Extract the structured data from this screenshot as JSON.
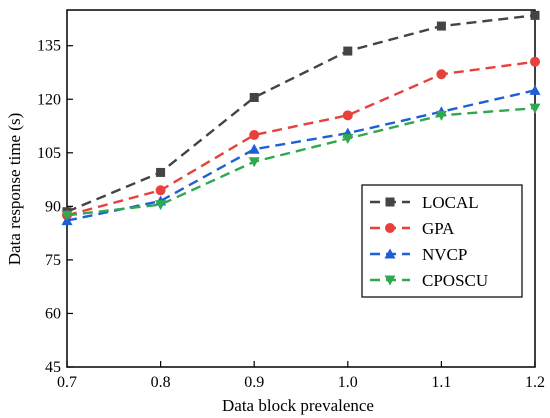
{
  "chart_data": {
    "type": "line",
    "xlabel": "Data block prevalence",
    "ylabel": "Data response time (s)",
    "x": [
      0.7,
      0.8,
      0.9,
      1.0,
      1.1,
      1.2
    ],
    "x_tick_labels": [
      "0.7",
      "0.8",
      "0.9",
      "1.0",
      "1.1",
      "1.2"
    ],
    "xlim": [
      0.7,
      1.2
    ],
    "y_ticks": [
      45,
      60,
      75,
      90,
      105,
      120,
      135
    ],
    "ylim": [
      45,
      145
    ],
    "grid": false,
    "legend_position": "right",
    "series": [
      {
        "name": "LOCAL",
        "color": "#444444",
        "marker": "square",
        "values": [
          88.5,
          99.5,
          120.5,
          133.5,
          140.5,
          143.5
        ]
      },
      {
        "name": "GPA",
        "color": "#e8413c",
        "marker": "circle",
        "values": [
          87.5,
          94.5,
          110.0,
          115.5,
          127.0,
          130.5
        ]
      },
      {
        "name": "NVCP",
        "color": "#1f5fd6",
        "marker": "triangle-up",
        "values": [
          86.0,
          91.5,
          106.0,
          110.5,
          116.5,
          122.5
        ]
      },
      {
        "name": "CPOSCU",
        "color": "#2fa84f",
        "marker": "triangle-down",
        "values": [
          87.5,
          90.5,
          102.5,
          109.0,
          115.5,
          117.5
        ]
      }
    ]
  }
}
